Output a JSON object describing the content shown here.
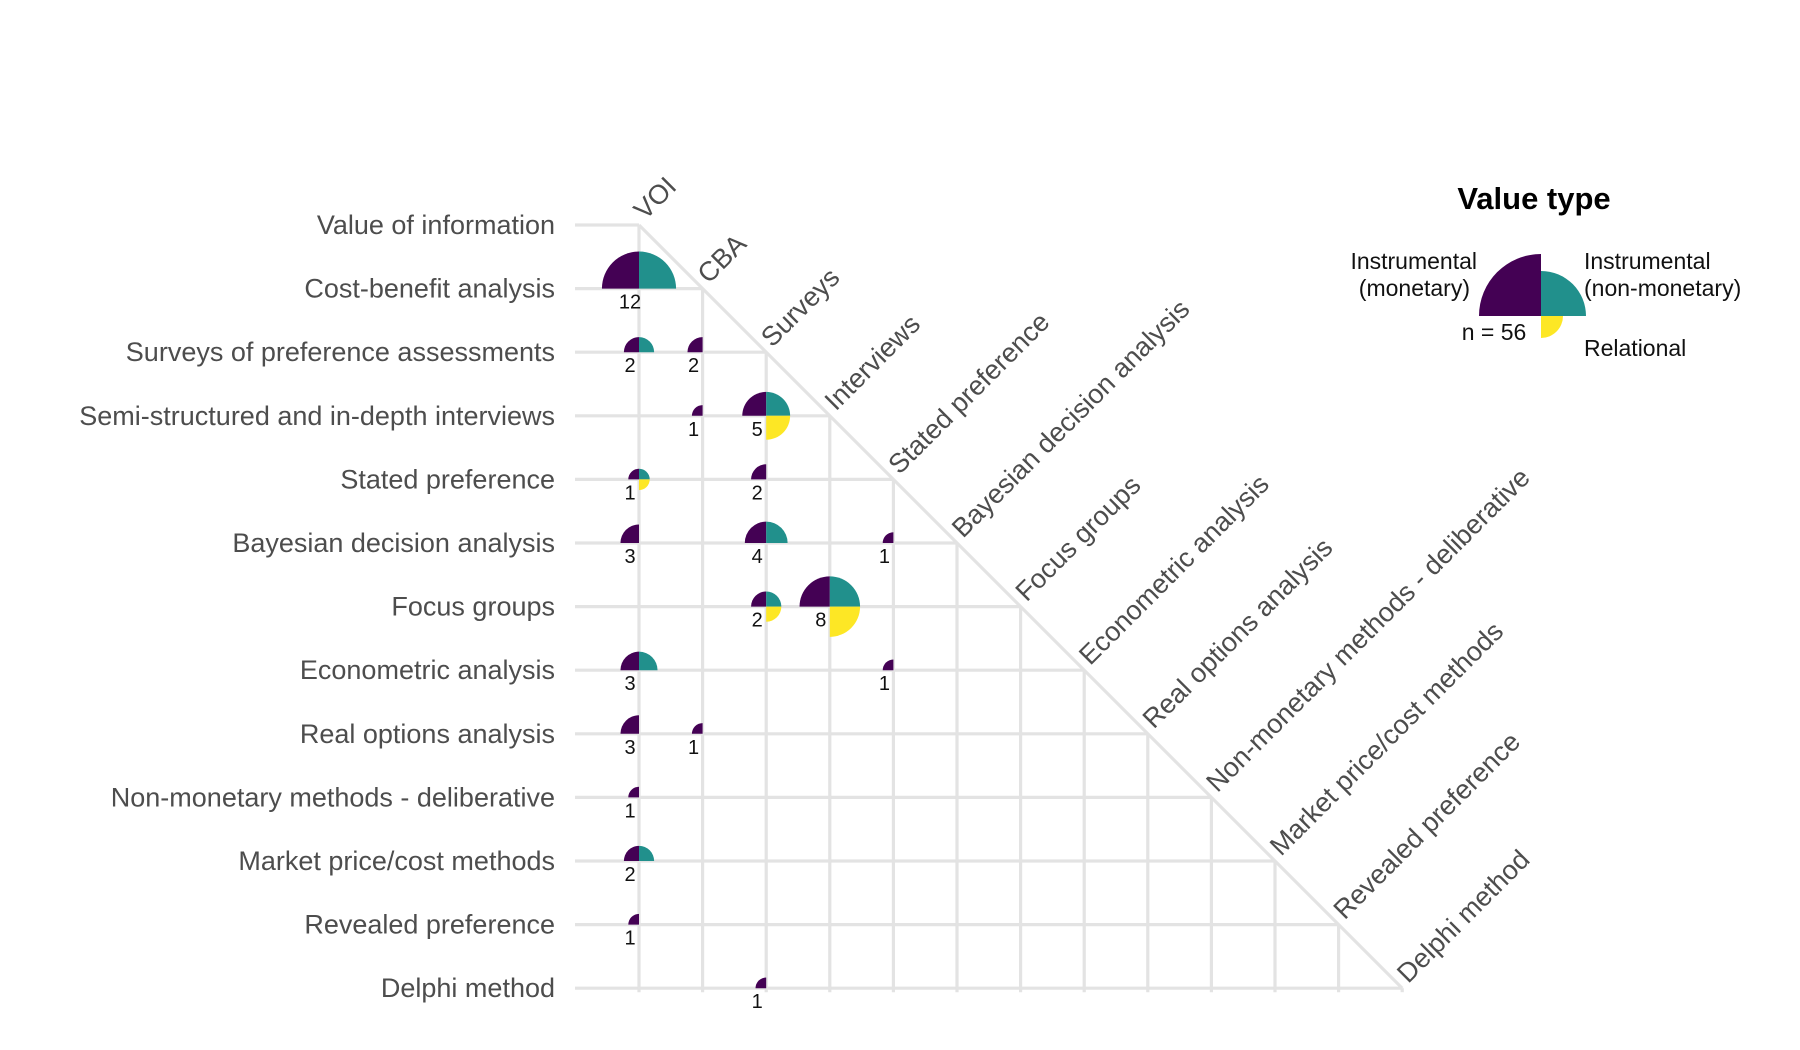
{
  "chart_data": {
    "type": "pie-matrix",
    "title": "",
    "rows": [
      "Value of information",
      "Cost-benefit analysis",
      "Surveys of preference assessments",
      "Semi-structured and in-depth interviews",
      "Stated preference",
      "Bayesian decision analysis",
      "Focus groups",
      "Econometric analysis",
      "Real options analysis",
      "Non-monetary methods - deliberative",
      "Market price/cost methods",
      "Revealed preference",
      "Delphi method"
    ],
    "columns": [
      "VOI",
      "CBA",
      "Surveys",
      "Interviews",
      "Stated preference",
      "Bayesian decision analysis",
      "Focus groups",
      "Econometric analysis",
      "Real options analysis",
      "Non-monetary methods - deliberative",
      "Market price/cost methods",
      "Revealed preference",
      "Delphi method"
    ],
    "series": [
      {
        "name": "Instrumental (monetary)",
        "color": "#440154"
      },
      {
        "name": "Instrumental (non-monetary)",
        "color": "#21908C"
      },
      {
        "name": "Relational",
        "color": "#FDE725"
      }
    ],
    "cells": [
      {
        "row": 1,
        "col": 0,
        "n": 12,
        "monetary": true,
        "nonmonetary": true,
        "relational": false
      },
      {
        "row": 2,
        "col": 0,
        "n": 2,
        "monetary": true,
        "nonmonetary": true,
        "relational": false
      },
      {
        "row": 2,
        "col": 1,
        "n": 2,
        "monetary": true,
        "nonmonetary": false,
        "relational": false
      },
      {
        "row": 3,
        "col": 1,
        "n": 1,
        "monetary": true,
        "nonmonetary": false,
        "relational": false
      },
      {
        "row": 3,
        "col": 2,
        "n": 5,
        "monetary": true,
        "nonmonetary": true,
        "relational": true
      },
      {
        "row": 4,
        "col": 0,
        "n": 1,
        "monetary": true,
        "nonmonetary": true,
        "relational": true
      },
      {
        "row": 4,
        "col": 2,
        "n": 2,
        "monetary": true,
        "nonmonetary": false,
        "relational": false
      },
      {
        "row": 5,
        "col": 0,
        "n": 3,
        "monetary": true,
        "nonmonetary": false,
        "relational": false
      },
      {
        "row": 5,
        "col": 2,
        "n": 4,
        "monetary": true,
        "nonmonetary": true,
        "relational": false
      },
      {
        "row": 5,
        "col": 4,
        "n": 1,
        "monetary": true,
        "nonmonetary": false,
        "relational": false
      },
      {
        "row": 6,
        "col": 2,
        "n": 2,
        "monetary": true,
        "nonmonetary": true,
        "relational": true
      },
      {
        "row": 6,
        "col": 3,
        "n": 8,
        "monetary": true,
        "nonmonetary": true,
        "relational": true
      },
      {
        "row": 7,
        "col": 0,
        "n": 3,
        "monetary": true,
        "nonmonetary": true,
        "relational": false
      },
      {
        "row": 7,
        "col": 4,
        "n": 1,
        "monetary": true,
        "nonmonetary": false,
        "relational": false
      },
      {
        "row": 8,
        "col": 0,
        "n": 3,
        "monetary": true,
        "nonmonetary": false,
        "relational": false
      },
      {
        "row": 8,
        "col": 1,
        "n": 1,
        "monetary": true,
        "nonmonetary": false,
        "relational": false
      },
      {
        "row": 9,
        "col": 0,
        "n": 1,
        "monetary": true,
        "nonmonetary": false,
        "relational": false
      },
      {
        "row": 10,
        "col": 0,
        "n": 2,
        "monetary": true,
        "nonmonetary": true,
        "relational": false
      },
      {
        "row": 11,
        "col": 0,
        "n": 1,
        "monetary": true,
        "nonmonetary": false,
        "relational": false
      },
      {
        "row": 12,
        "col": 2,
        "n": 1,
        "monetary": true,
        "nonmonetary": false,
        "relational": false
      }
    ],
    "legend": {
      "title": "Value type",
      "monetary_line1": "Instrumental",
      "monetary_line2": "(monetary)",
      "nonmonetary_line1": "Instrumental",
      "nonmonetary_line2": "(non-monetary)",
      "relational": "Relational",
      "n_label": "n = 56",
      "placement": "top-right"
    }
  }
}
